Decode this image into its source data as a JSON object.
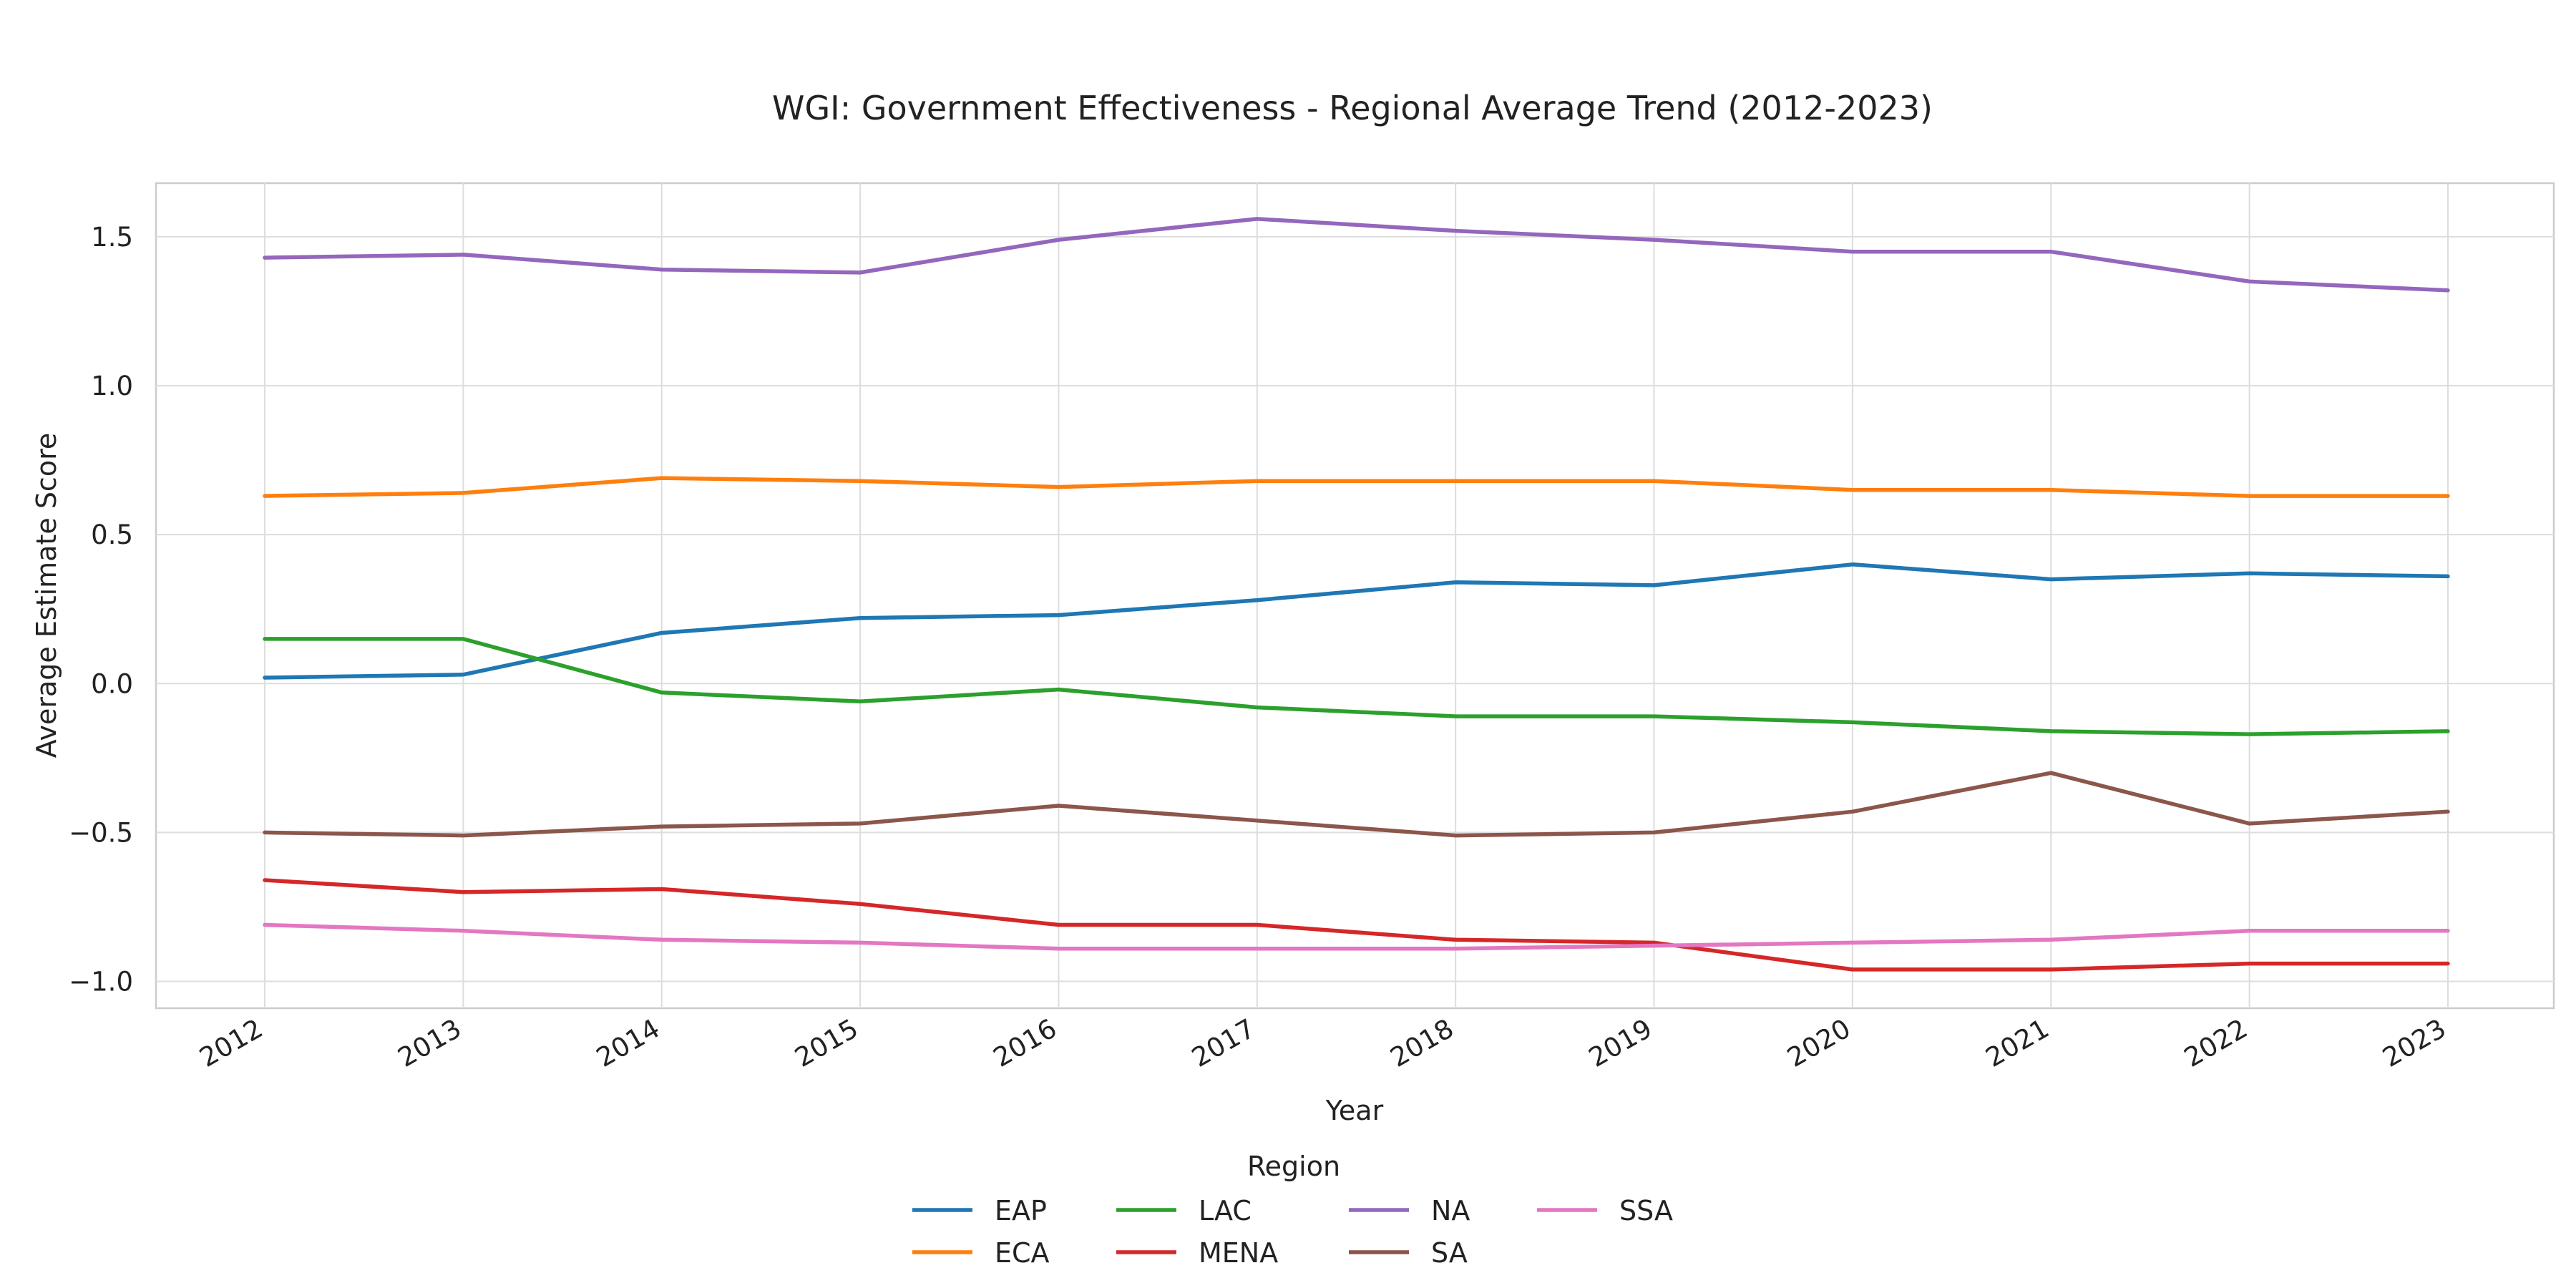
{
  "chart_data": {
    "type": "line",
    "title": "WGI: Government Effectiveness - Regional Average Trend (2012-2023)",
    "xlabel": "Year",
    "ylabel": "Average Estimate Score",
    "x": [
      "2012",
      "2013",
      "2014",
      "2015",
      "2016",
      "2017",
      "2018",
      "2019",
      "2020",
      "2021",
      "2022",
      "2023"
    ],
    "ylim": [
      -1.09,
      1.68
    ],
    "yticks": [
      {
        "value": 1.5,
        "label": "1.5"
      },
      {
        "value": 1.0,
        "label": "1.0"
      },
      {
        "value": 0.5,
        "label": "0.5"
      },
      {
        "value": 0.0,
        "label": "0.0"
      },
      {
        "value": -0.5,
        "label": "−0.5"
      },
      {
        "value": -1.0,
        "label": "−1.0"
      }
    ],
    "grid": true,
    "legend": {
      "title": "Region",
      "placement": "bottom-center",
      "columns": 4
    },
    "series": [
      {
        "name": "EAP",
        "color": "#1f77b4",
        "values": [
          0.02,
          0.03,
          0.17,
          0.22,
          0.23,
          0.28,
          0.34,
          0.33,
          0.4,
          0.35,
          0.37,
          0.36
        ]
      },
      {
        "name": "ECA",
        "color": "#ff7f0e",
        "values": [
          0.63,
          0.64,
          0.69,
          0.68,
          0.66,
          0.68,
          0.68,
          0.68,
          0.65,
          0.65,
          0.63,
          0.63
        ]
      },
      {
        "name": "LAC",
        "color": "#2ca02c",
        "values": [
          0.15,
          0.15,
          -0.03,
          -0.06,
          -0.02,
          -0.08,
          -0.11,
          -0.11,
          -0.13,
          -0.16,
          -0.17,
          -0.16
        ]
      },
      {
        "name": "MENA",
        "color": "#d62728",
        "values": [
          -0.66,
          -0.7,
          -0.69,
          -0.74,
          -0.81,
          -0.81,
          -0.86,
          -0.87,
          -0.96,
          -0.96,
          -0.94,
          -0.94
        ]
      },
      {
        "name": "NA",
        "color": "#9467bd",
        "values": [
          1.43,
          1.44,
          1.39,
          1.38,
          1.49,
          1.56,
          1.52,
          1.49,
          1.45,
          1.45,
          1.35,
          1.32
        ]
      },
      {
        "name": "SA",
        "color": "#8c564b",
        "values": [
          -0.5,
          -0.51,
          -0.48,
          -0.47,
          -0.41,
          -0.46,
          -0.51,
          -0.5,
          -0.43,
          -0.3,
          -0.47,
          -0.43
        ]
      },
      {
        "name": "SSA",
        "color": "#e377c2",
        "values": [
          -0.81,
          -0.83,
          -0.86,
          -0.87,
          -0.89,
          -0.89,
          -0.89,
          -0.88,
          -0.87,
          -0.86,
          -0.83,
          -0.83
        ]
      }
    ]
  }
}
